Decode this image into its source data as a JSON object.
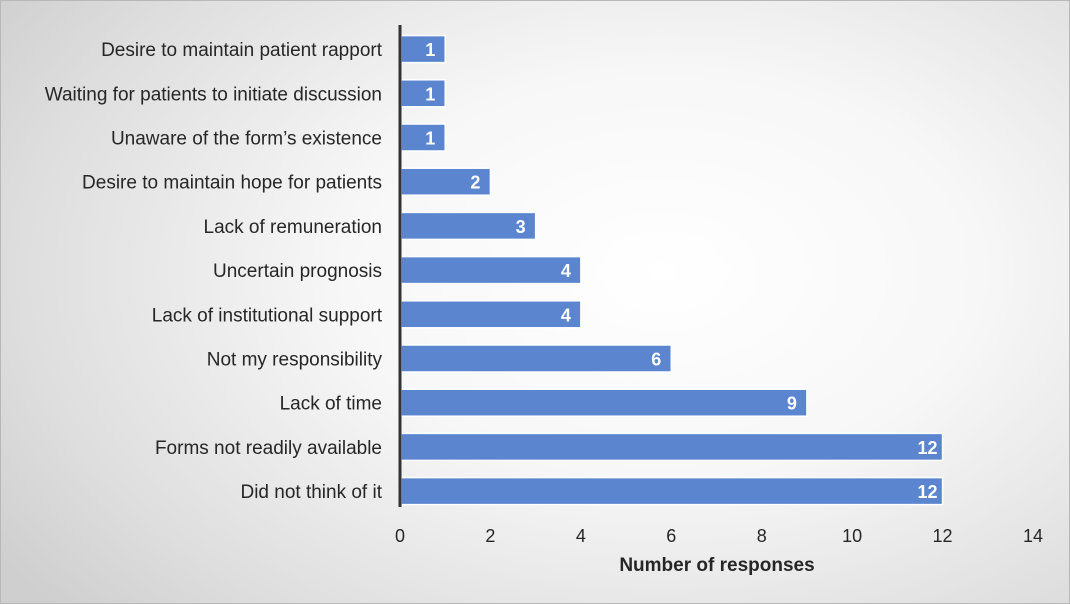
{
  "chart_data": {
    "type": "bar",
    "orientation": "horizontal",
    "categories": [
      "Desire to maintain patient rapport",
      "Waiting for patients to initiate discussion",
      "Unaware of the form’s existence",
      "Desire to maintain hope for patients",
      "Lack of remuneration",
      "Uncertain prognosis",
      "Lack of institutional support",
      "Not my responsibility",
      "Lack of time",
      "Forms not readily available",
      "Did not think of it"
    ],
    "values": [
      1,
      1,
      1,
      2,
      3,
      4,
      4,
      6,
      9,
      12,
      12
    ],
    "data_labels": [
      "1",
      "1",
      "1",
      "2",
      "3",
      "4",
      "4",
      "6",
      "9",
      "12",
      "12"
    ],
    "title": "",
    "xlabel": "Number of responses",
    "ylabel": "",
    "xlim": [
      0,
      14
    ],
    "xticks": [
      "0",
      "2",
      "4",
      "6",
      "8",
      "10",
      "12",
      "14"
    ],
    "grid": false,
    "legend": "none",
    "bar_color": "#5b86cf",
    "bar_edge_color": "#ffffff"
  }
}
